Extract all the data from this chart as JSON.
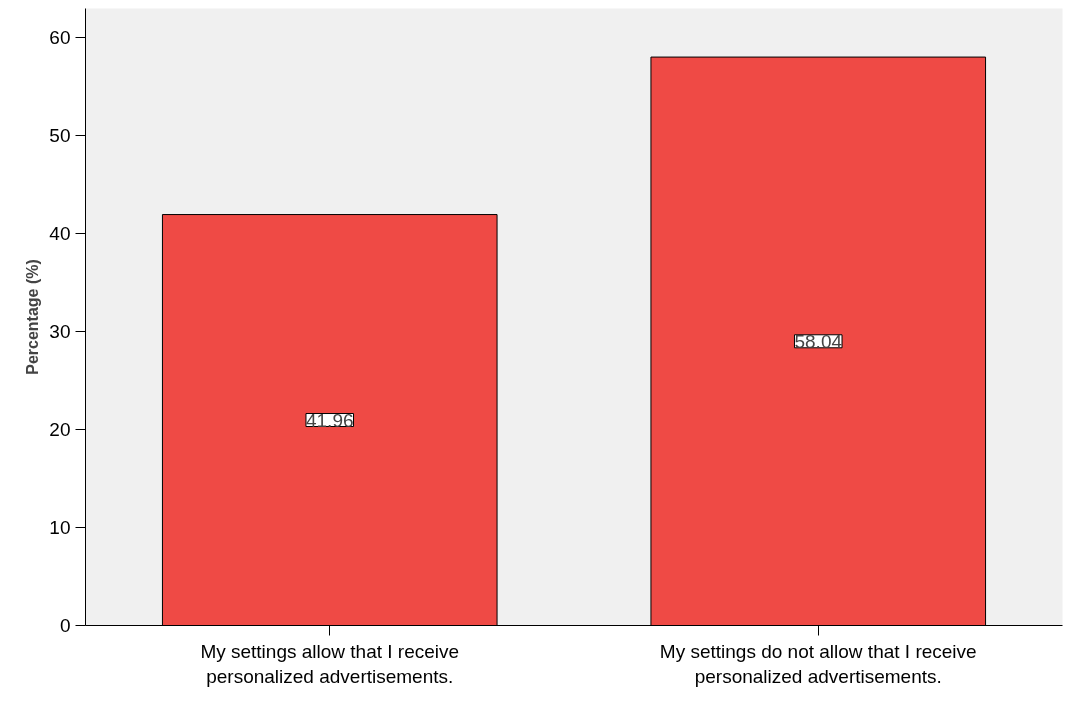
{
  "chart_data": {
    "type": "bar",
    "ylabel": "Percentage (%)",
    "categories": [
      "My settings allow that I receive personalized advertisements.",
      "My settings do not allow that I receive personalized advertisements."
    ],
    "values": [
      41.96,
      58.04
    ],
    "color": "#ef4a45",
    "data_labels": true,
    "ylim": [
      0,
      63
    ],
    "yticks": [
      0,
      10,
      20,
      30,
      40,
      50,
      60
    ],
    "grid": false
  }
}
